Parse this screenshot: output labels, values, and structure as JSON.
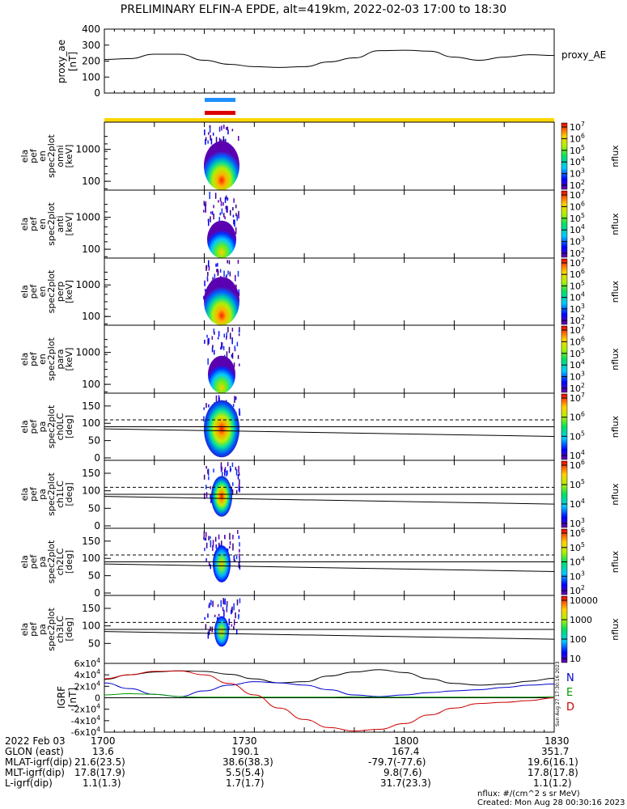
{
  "title": "PRELIMINARY ELFIN-A EPDE, alt=419km, 2022-02-03 17:00 to 18:30",
  "colors": {
    "north_bar": "#1e90ff",
    "south_bar": "#dd0000",
    "sci_zone_bar": "#ffd700",
    "B_N": "#0000cc",
    "B_E": "#009900",
    "B_D": "#cc0000",
    "B_tot": "#000000"
  },
  "chart_data": [
    {
      "type": "line",
      "panel": "proxy_ae",
      "ylabel": "proxy_ae [nT]",
      "legend": "proxy_AE",
      "ylim": [
        0,
        400
      ],
      "yticks": [
        "0",
        "100",
        "200",
        "300",
        "400"
      ],
      "x": [
        0,
        5,
        10,
        15,
        20,
        25,
        30,
        35,
        40,
        45,
        50,
        55,
        60,
        65,
        70,
        75,
        80,
        85,
        90
      ],
      "values": [
        210,
        215,
        243,
        243,
        205,
        180,
        165,
        160,
        165,
        195,
        220,
        265,
        268,
        262,
        225,
        205,
        225,
        240,
        235
      ]
    },
    {
      "type": "heatmap",
      "panel": "omni",
      "ylabel": [
        "ela",
        "pef",
        "en",
        "spec2plot",
        "omni",
        "[keV]"
      ],
      "yticks": [
        "100",
        "1000"
      ],
      "colorbar": {
        "label": "nflux",
        "ticks": [
          "10^2",
          "10^3",
          "10^4",
          "10^5",
          "10^6",
          "10^7"
        ]
      }
    },
    {
      "type": "heatmap",
      "panel": "anti",
      "ylabel": [
        "ela",
        "pef",
        "en",
        "spec2plot",
        "anti",
        "[keV]"
      ],
      "yticks": [
        "100",
        "1000"
      ],
      "colorbar": {
        "label": "nflux",
        "ticks": [
          "10^2",
          "10^3",
          "10^4",
          "10^5",
          "10^6",
          "10^7"
        ]
      }
    },
    {
      "type": "heatmap",
      "panel": "perp",
      "ylabel": [
        "ela",
        "pef",
        "en",
        "spec2plot",
        "perp",
        "[keV]"
      ],
      "yticks": [
        "100",
        "1000"
      ],
      "colorbar": {
        "label": "nflux",
        "ticks": [
          "10^2",
          "10^3",
          "10^4",
          "10^5",
          "10^6",
          "10^7"
        ]
      }
    },
    {
      "type": "heatmap",
      "panel": "para",
      "ylabel": [
        "ela",
        "pef",
        "en",
        "spec2plot",
        "para",
        "[keV]"
      ],
      "yticks": [
        "100",
        "1000"
      ],
      "colorbar": {
        "label": "nflux",
        "ticks": [
          "10^2",
          "10^3",
          "10^4",
          "10^5",
          "10^6",
          "10^7"
        ]
      }
    },
    {
      "type": "heatmap",
      "panel": "ch0LC",
      "ylabel": [
        "ela",
        "pef",
        "pa",
        "spec2plot",
        "ch0LC",
        "[deg]"
      ],
      "yticks": [
        "0",
        "50",
        "100",
        "150"
      ],
      "colorbar": {
        "label": "nflux",
        "ticks": [
          "10^4",
          "10^5",
          "10^6",
          "10^7"
        ]
      }
    },
    {
      "type": "heatmap",
      "panel": "ch1LC",
      "ylabel": [
        "ela",
        "pef",
        "pa",
        "spec2plot",
        "ch1LC",
        "[deg]"
      ],
      "yticks": [
        "0",
        "50",
        "100",
        "150"
      ],
      "colorbar": {
        "label": "nflux",
        "ticks": [
          "10^3",
          "10^4",
          "10^5",
          "10^6"
        ]
      }
    },
    {
      "type": "heatmap",
      "panel": "ch2LC",
      "ylabel": [
        "ela",
        "pef",
        "pa",
        "spec2plot",
        "ch2LC",
        "[deg]"
      ],
      "yticks": [
        "0",
        "50",
        "100",
        "150"
      ],
      "colorbar": {
        "label": "nflux",
        "ticks": [
          "10^2",
          "10^3",
          "10^4",
          "10^5",
          "10^6"
        ]
      }
    },
    {
      "type": "heatmap",
      "panel": "ch3LC",
      "ylabel": [
        "ela",
        "pef",
        "pa",
        "spec2plot",
        "ch3LC",
        "[deg]"
      ],
      "yticks": [
        "50",
        "100",
        "150"
      ],
      "colorbar": {
        "label": "nflux",
        "ticks": [
          "10",
          "100",
          "1000",
          "10000"
        ]
      }
    },
    {
      "type": "line",
      "panel": "IGRF",
      "ylabel": "IGRF [nT]",
      "ylim": [
        -60000,
        60000
      ],
      "yticks": [
        "6x10^4",
        "4x10^4",
        "2x10^4",
        "0",
        "-2x10^4",
        "-4x10^4",
        "-6x10^4"
      ],
      "legend": [
        "N",
        "E",
        "D"
      ],
      "x": [
        0,
        5,
        10,
        15,
        20,
        25,
        30,
        35,
        40,
        45,
        50,
        55,
        60,
        65,
        70,
        75,
        80,
        85,
        90
      ],
      "series": [
        {
          "color": "#000000",
          "values": [
            32000,
            40000,
            45000,
            47000,
            46000,
            41000,
            33000,
            26000,
            28000,
            38000,
            45000,
            49000,
            44000,
            33000,
            25000,
            22000,
            24000,
            29000,
            34000
          ]
        },
        {
          "color": "#0000cc",
          "values": [
            26000,
            16000,
            6000,
            2000,
            12000,
            22000,
            28000,
            26000,
            22000,
            14000,
            5000,
            2000,
            5000,
            9000,
            12000,
            14000,
            18000,
            22000,
            24000
          ]
        },
        {
          "color": "#009900",
          "values": [
            5000,
            7000,
            6000,
            2000,
            1000,
            1000,
            1000,
            1000,
            1000,
            1000,
            2000,
            1000,
            1000,
            1000,
            1000,
            1000,
            1000,
            1000,
            2000
          ]
        },
        {
          "color": "#cc0000",
          "values": [
            33000,
            40000,
            46000,
            47000,
            40000,
            25000,
            5000,
            -18000,
            -38000,
            -52000,
            -58000,
            -55000,
            -45000,
            -30000,
            -18000,
            -10000,
            -8000,
            -5000,
            0
          ]
        }
      ]
    }
  ],
  "xaxis": {
    "date": "2022 Feb 03",
    "ticks": [
      "1700",
      "1730",
      "1800",
      "1830"
    ],
    "rows": [
      {
        "label": "GLON (east)",
        "values": [
          "13.6",
          "190.1",
          "167.4",
          "351.7"
        ]
      },
      {
        "label": "MLAT-igrf(dip)",
        "values": [
          "21.6(23.5)",
          "38.6(38.3)",
          "-79.7(-77.6)",
          "19.6(16.1)"
        ]
      },
      {
        "label": "MLT-igrf(dip)",
        "values": [
          "17.8(17.9)",
          "5.5(5.4)",
          "9.8(7.6)",
          "17.8(17.8)"
        ]
      },
      {
        "label": "L-igrf(dip)",
        "values": [
          "1.1(1.3)",
          "1.7(1.7)",
          "31.7(23.3)",
          "1.1(1.2)"
        ]
      }
    ]
  },
  "footer": {
    "units": "nflux: #/(cm^2 s sr MeV)",
    "created": "Created: Mon Aug 28 00:30:16 2023",
    "side_stamp": "Sun Aug 27 17:30:16 2023"
  }
}
